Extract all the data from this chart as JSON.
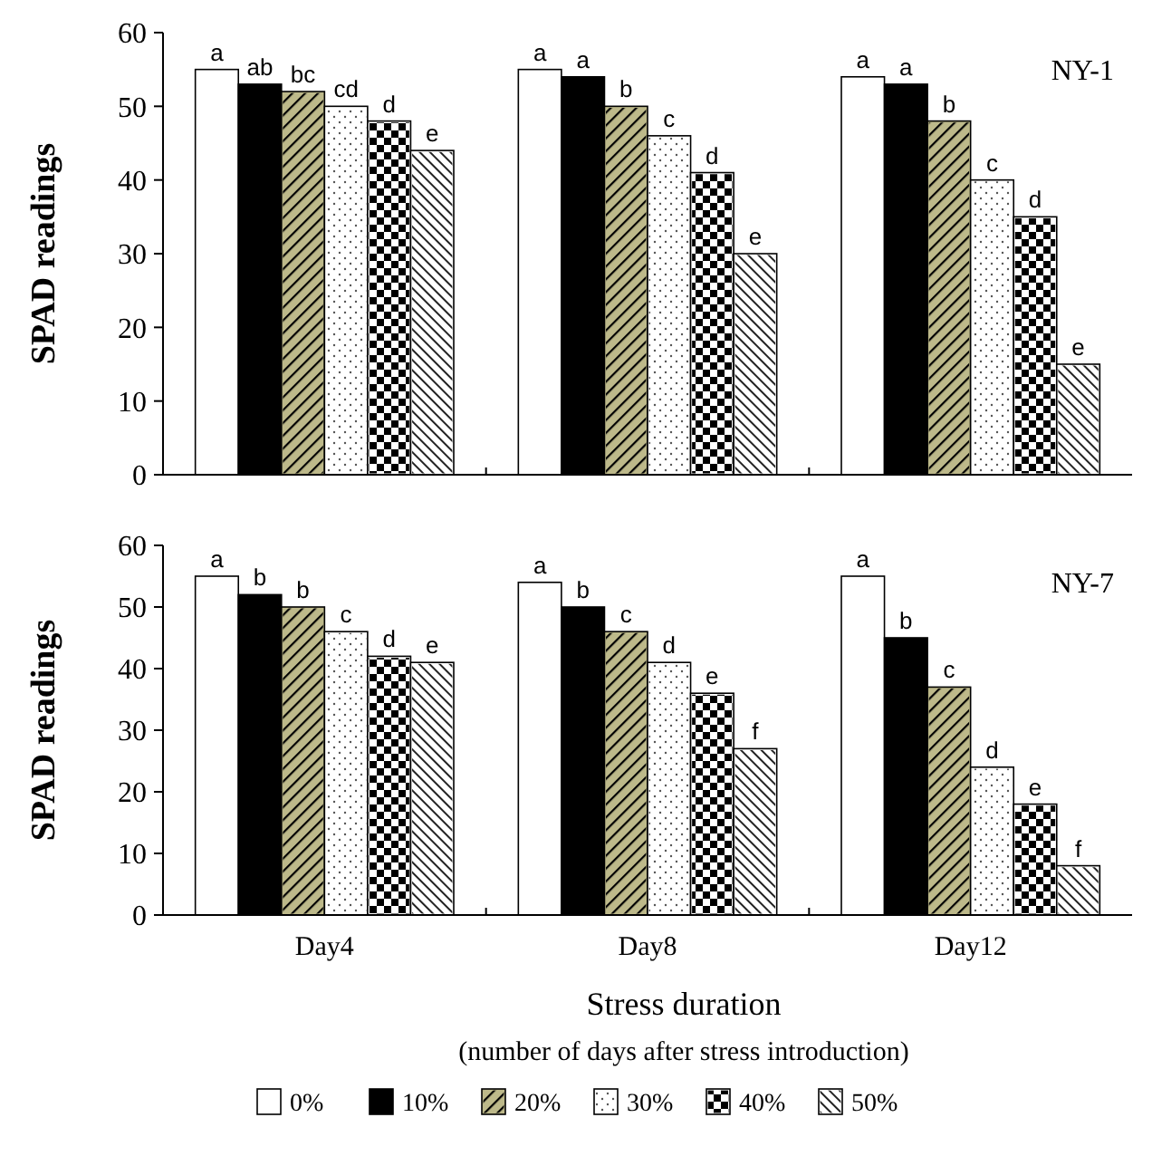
{
  "chart_data": [
    {
      "type": "bar",
      "title": "NY-1",
      "ylabel": "SPAD readings",
      "categories": [
        null,
        null,
        null
      ],
      "ylim": [
        0,
        60
      ],
      "yticks": [
        0,
        10,
        20,
        30,
        40,
        50,
        60
      ],
      "tick_labels": "y",
      "legend": false,
      "grid": false,
      "series": [
        {
          "color": "#ffffff",
          "values": [
            55,
            55,
            54
          ],
          "value_labels": [
            "a",
            "a",
            "a"
          ]
        },
        {
          "color": "#000000",
          "values": [
            53,
            54,
            53
          ],
          "value_labels": [
            "ab",
            "a",
            "a"
          ]
        },
        {
          "color": "#bdb98a",
          "values": [
            52,
            50,
            48
          ],
          "value_labels": [
            "bc",
            "b",
            "b"
          ]
        },
        {
          "color": "#ffffff",
          "values": [
            50,
            46,
            40
          ],
          "value_labels": [
            "cd",
            "c",
            "c"
          ]
        },
        {
          "color": "#ffffff",
          "values": [
            48,
            41,
            35
          ],
          "value_labels": [
            "d",
            "d",
            "d"
          ]
        },
        {
          "color": "#ffffff",
          "values": [
            44,
            30,
            15
          ],
          "value_labels": [
            "e",
            "e",
            "e"
          ]
        }
      ]
    },
    {
      "type": "bar",
      "title": "NY-7",
      "ylabel": "SPAD readings",
      "xlabel": "Stress duration\n(number of days after stress introduction)",
      "categories": [
        "Day4",
        "Day8",
        "Day12"
      ],
      "ylim": [
        0,
        60
      ],
      "yticks": [
        0,
        10,
        20,
        30,
        40,
        50,
        60
      ],
      "legend": "bottom",
      "grid": false,
      "series": [
        {
          "name": "0%",
          "color": "#ffffff",
          "values": [
            55,
            54,
            55
          ],
          "value_labels": [
            "a",
            "a",
            "a"
          ]
        },
        {
          "name": "10%",
          "color": "#000000",
          "values": [
            52,
            50,
            45
          ],
          "value_labels": [
            "b",
            "b",
            "b"
          ]
        },
        {
          "name": "20%",
          "color": "#bdb98a",
          "values": [
            50,
            46,
            37
          ],
          "value_labels": [
            "b",
            "c",
            "c"
          ]
        },
        {
          "name": "30%",
          "color": "#ffffff",
          "values": [
            46,
            41,
            24
          ],
          "value_labels": [
            "c",
            "d",
            "d"
          ]
        },
        {
          "name": "40%",
          "color": "#ffffff",
          "values": [
            42,
            36,
            18
          ],
          "value_labels": [
            "d",
            "e",
            "e"
          ]
        },
        {
          "name": "50%",
          "color": "#ffffff",
          "values": [
            41,
            27,
            8
          ],
          "value_labels": [
            "e",
            "f",
            "f"
          ]
        }
      ]
    }
  ]
}
